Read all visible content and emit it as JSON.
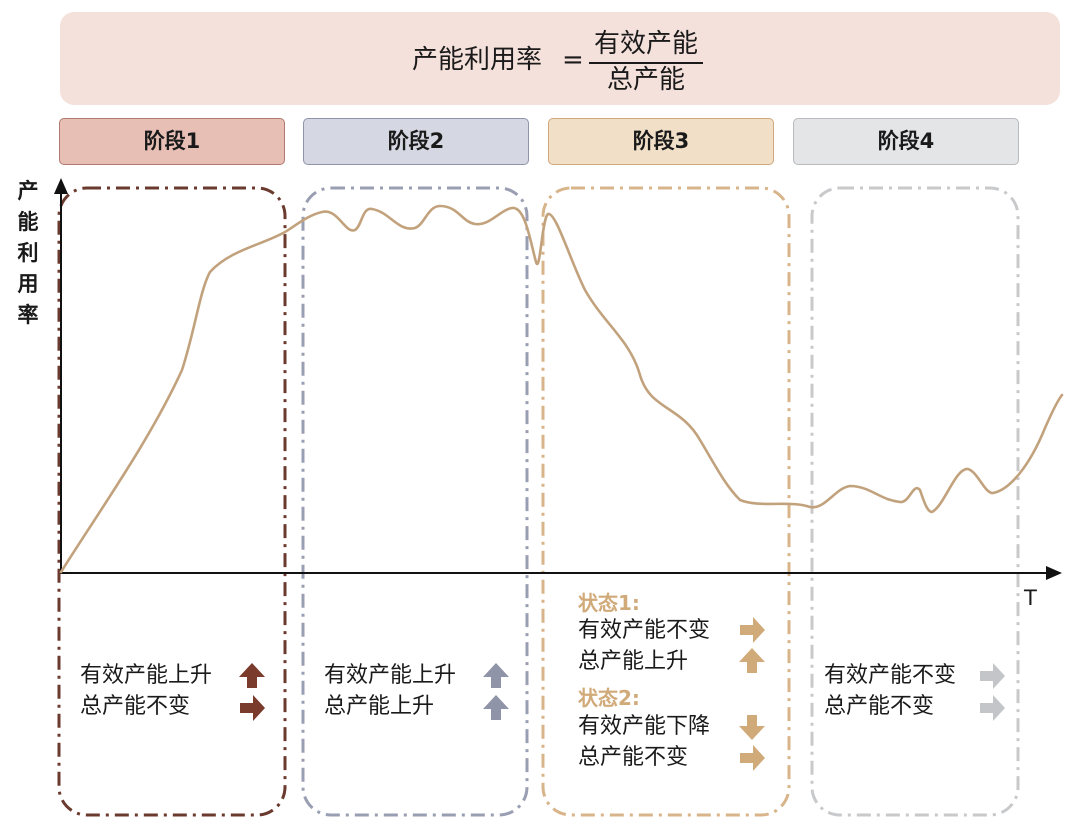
{
  "formula": {
    "lhs": "产能利用率",
    "equals": "=",
    "numerator": "有效产能",
    "denominator": "总产能"
  },
  "stages": [
    {
      "label": "阶段1",
      "color": "#e8bfb5"
    },
    {
      "label": "阶段2",
      "color": "#d5d8e2"
    },
    {
      "label": "阶段3",
      "color": "#f2dfc8"
    },
    {
      "label": "阶段4",
      "color": "#e4e5e7"
    }
  ],
  "axes": {
    "y_label": [
      "产",
      "能",
      "利",
      "用",
      "率"
    ],
    "x_label": "T"
  },
  "curve_color": "#c2a27d",
  "notes": {
    "stage1": {
      "line1": "有效产能上升",
      "arrow1": "up",
      "line2": "总产能不变",
      "arrow2": "right",
      "color": "#7a3a2c"
    },
    "stage2": {
      "line1": "有效产能上升",
      "arrow1": "up",
      "line2": "总产能上升",
      "arrow2": "up",
      "color": "#8f94a8"
    },
    "stage3": {
      "state1_label": "状态1:",
      "s1_line1": "有效产能不变",
      "s1_arrow1": "right",
      "s1_line2": "总产能上升",
      "s1_arrow2": "up",
      "state2_label": "状态2:",
      "s2_line1": "有效产能下降",
      "s2_arrow1": "down",
      "s2_line2": "总产能不变",
      "s2_arrow2": "right",
      "color": "#d1aa7a"
    },
    "stage4": {
      "line1": "有效产能不变",
      "arrow1": "right",
      "line2": "总产能不变",
      "arrow2": "right",
      "color": "#c4c5c8"
    }
  }
}
